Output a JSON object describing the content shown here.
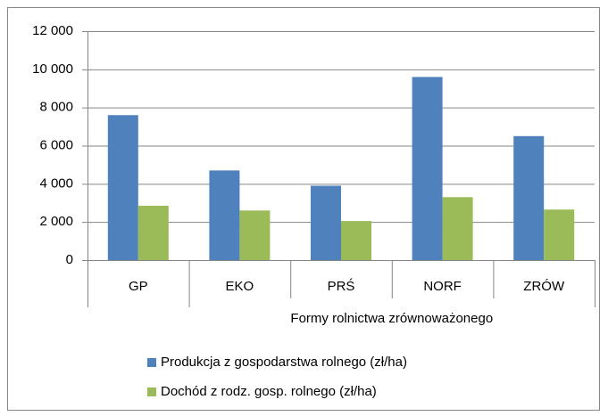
{
  "chart_data": {
    "type": "bar",
    "categories": [
      "GP",
      "EKO",
      "PRŚ",
      "NORF",
      "ZRÓW"
    ],
    "category_group": "Formy rolnictwa zrównoważonego",
    "series": [
      {
        "name": "Produkcja z gospodarstwa rolnego (zł/ha)",
        "color": "#4f81bd",
        "values": [
          7600,
          4700,
          3900,
          9600,
          6500
        ]
      },
      {
        "name": "Dochód z rodz. gosp. rolnego (zł/ha)",
        "color": "#9bbb59",
        "values": [
          2850,
          2600,
          2050,
          3300,
          2650
        ]
      }
    ],
    "ylim": [
      0,
      12000
    ],
    "yticks": [
      0,
      {
        "value": 2000,
        "label": "2 000"
      },
      {
        "value": 4000,
        "label": "4 000"
      },
      {
        "value": 6000,
        "label": "6 000"
      },
      {
        "value": 8000,
        "label": "8 000"
      },
      {
        "value": 10000,
        "label": "10 000"
      },
      {
        "value": 12000,
        "label": "12 000"
      }
    ],
    "grid": true,
    "legend": "bottom"
  }
}
